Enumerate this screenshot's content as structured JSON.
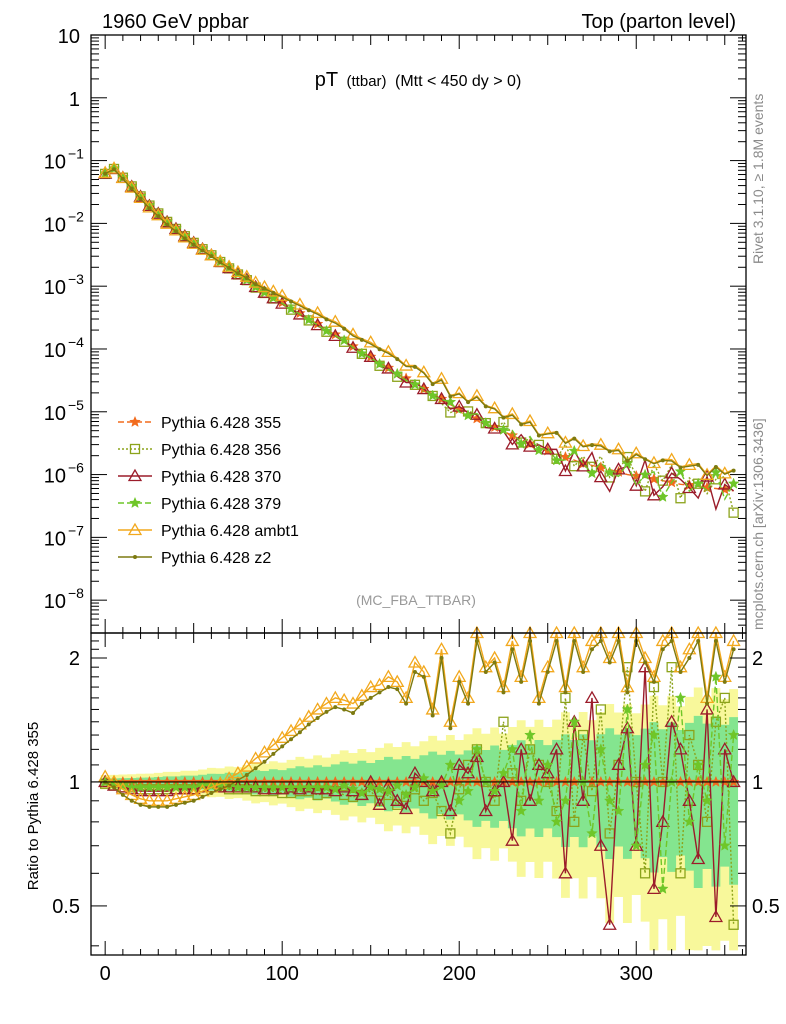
{
  "header": {
    "left": "1960 GeV ppbar",
    "right": "Top (parton level)"
  },
  "side_labels": {
    "rivet": "Rivet 3.1.10, ≥ 1.8M events",
    "mcplots": "mcplots.cern.ch [arXiv:1306.3436]"
  },
  "chart_data": {
    "type": "line",
    "title_main": "pT",
    "title_sub": "(ttbar)",
    "title_cond": "(Mtt < 450 dy > 0)",
    "analysis": "(MC_FBA_TTBAR)",
    "ratio_ylabel": "Ratio to Pythia 6.428 355",
    "xlim": [
      -8,
      362
    ],
    "ylim_main": [
      3e-09,
      10
    ],
    "ylim_ratio": [
      0.38,
      2.3
    ],
    "yscale_main": "log",
    "yscale_ratio": "log",
    "x_ticks": [
      "0",
      "100",
      "200",
      "300"
    ],
    "x_tick_values": [
      0,
      100,
      200,
      300
    ],
    "y_ticks_main": [
      {
        "base": "10",
        "exp": "",
        "value": 10
      },
      {
        "base": "1",
        "exp": "",
        "value": 1
      },
      {
        "base": "10",
        "exp": "−1",
        "value": 0.1
      },
      {
        "base": "10",
        "exp": "−2",
        "value": 0.01
      },
      {
        "base": "10",
        "exp": "−3",
        "value": 0.001
      },
      {
        "base": "10",
        "exp": "−4",
        "value": 0.0001
      },
      {
        "base": "10",
        "exp": "−5",
        "value": 1e-05
      },
      {
        "base": "10",
        "exp": "−6",
        "value": 1e-06
      },
      {
        "base": "10",
        "exp": "−7",
        "value": 1e-07
      },
      {
        "base": "10",
        "exp": "−8",
        "value": 1e-08
      }
    ],
    "y_ticks_ratio": [
      {
        "label": "2",
        "value": 2
      },
      {
        "label": "1",
        "value": 1
      },
      {
        "label": "0.5",
        "value": 0.5
      }
    ],
    "legend_position": "lower-left",
    "x": [
      0,
      5,
      10,
      15,
      20,
      25,
      30,
      35,
      40,
      45,
      50,
      55,
      60,
      65,
      70,
      75,
      80,
      85,
      90,
      95,
      100,
      105,
      110,
      115,
      120,
      125,
      130,
      135,
      140,
      145,
      150,
      155,
      160,
      165,
      170,
      175,
      180,
      185,
      190,
      195,
      200,
      205,
      210,
      215,
      220,
      225,
      230,
      235,
      240,
      245,
      250,
      255,
      260,
      265,
      270,
      275,
      280,
      285,
      290,
      295,
      300,
      305,
      310,
      315,
      320,
      325,
      330,
      335,
      340,
      345,
      350,
      355
    ],
    "reference": [
      0.062,
      0.075,
      0.055,
      0.04,
      0.028,
      0.02,
      0.015,
      0.011,
      0.0085,
      0.0065,
      0.0051,
      0.004,
      0.0032,
      0.0025,
      0.002,
      0.0016,
      0.0013,
      0.001,
      0.00082,
      0.00067,
      0.00055,
      0.00045,
      0.00037,
      0.0003,
      0.00025,
      0.0002,
      0.00017,
      0.00014,
      0.00011,
      9e-05,
      7.5e-05,
      6e-05,
      5e-05,
      4.1e-05,
      3.4e-05,
      2.8e-05,
      2.3e-05,
      1.9e-05,
      1.6e-05,
      1.3e-05,
      1.1e-05,
      9.2e-06,
      7.8e-06,
      6.6e-06,
      5.7e-06,
      4.9e-06,
      4.2e-06,
      3.6e-06,
      3.1e-06,
      2.7e-06,
      2.4e-06,
      2.1e-06,
      1.9e-06,
      1.7e-06,
      1.5e-06,
      1.4e-06,
      1.3e-06,
      1.2e-06,
      1.1e-06,
      1e-06,
      9.5e-07,
      9e-07,
      8.5e-07,
      8e-07,
      7.5e-07,
      7e-07,
      6.8e-07,
      6.5e-07,
      6.2e-07,
      6e-07,
      5.8e-07,
      5.5e-07
    ],
    "ratio_reference": 1.0,
    "ratio_band": {
      "green_halfwidth_start": 0.02,
      "green_halfwidth_end": 0.45,
      "yellow_halfwidth_start": 0.04,
      "yellow_halfwidth_end": 0.7
    },
    "series": [
      {
        "name": "Pythia 6.428 355",
        "color": "#f26b1d",
        "marker": "star",
        "style": "dashed",
        "ratio": [
          1.0,
          1.0,
          1.0,
          1.0,
          1.0,
          1.0,
          1.0,
          1.0,
          1.0,
          1.0,
          1.0,
          1.0,
          1.0,
          1.0,
          1.0,
          1.0,
          1.0,
          1.0,
          1.0,
          1.0,
          1.0,
          1.0,
          1.0,
          1.0,
          1.0,
          1.0,
          1.0,
          1.0,
          1.0,
          1.0,
          1.0,
          1.0,
          1.0,
          1.0,
          1.0,
          1.0,
          1.0,
          1.0,
          1.0,
          1.0,
          1.0,
          1.0,
          1.0,
          1.0,
          1.0,
          1.0,
          1.0,
          1.0,
          1.0,
          1.0,
          1.0,
          1.0,
          1.0,
          1.0,
          1.0,
          1.0,
          1.0,
          1.0,
          1.0,
          1.0,
          1.0,
          1.0,
          1.0,
          1.0,
          1.0,
          1.0,
          1.0,
          1.0,
          1.0,
          1.0,
          1.0,
          1.0
        ]
      },
      {
        "name": "Pythia 6.428 356",
        "color": "#8ca31b",
        "marker": "open-square",
        "style": "dotted",
        "ratio": [
          0.99,
          0.98,
          0.97,
          0.97,
          0.96,
          0.96,
          0.96,
          0.96,
          0.96,
          0.96,
          0.96,
          0.97,
          0.97,
          0.97,
          0.96,
          0.96,
          0.96,
          0.95,
          0.95,
          0.95,
          0.94,
          0.94,
          0.95,
          0.95,
          0.93,
          0.94,
          0.95,
          0.93,
          0.92,
          0.93,
          0.95,
          0.9,
          0.93,
          0.88,
          0.92,
          0.96,
          0.9,
          0.94,
          0.85,
          0.75,
          0.96,
          1.1,
          1.2,
          1.0,
          0.9,
          1.4,
          1.05,
          0.9,
          1.2,
          1.1,
          1.0,
          0.85,
          1.6,
          0.8,
          1.3,
          0.95,
          1.5,
          0.75,
          1.1,
          1.9,
          1.0,
          0.6,
          1.7,
          1.0,
          1.9,
          0.6,
          1.3,
          1.1,
          0.8,
          1.4,
          1.6,
          0.45
        ]
      },
      {
        "name": "Pythia 6.428 370",
        "color": "#9b1c2a",
        "marker": "open-triangle",
        "style": "solid",
        "ratio": [
          1.0,
          0.98,
          0.97,
          0.96,
          0.95,
          0.95,
          0.95,
          0.95,
          0.96,
          0.96,
          0.96,
          0.97,
          0.97,
          0.97,
          0.97,
          0.97,
          0.97,
          0.97,
          0.96,
          0.96,
          0.96,
          0.97,
          0.96,
          0.97,
          0.96,
          0.96,
          0.95,
          0.97,
          0.95,
          0.93,
          1.0,
          0.88,
          0.98,
          0.9,
          0.86,
          1.05,
          1.0,
          0.95,
          1.0,
          0.85,
          1.1,
          1.05,
          1.15,
          0.85,
          0.95,
          1.0,
          0.72,
          1.2,
          0.9,
          1.1,
          1.05,
          1.2,
          0.6,
          1.4,
          0.9,
          1.6,
          0.7,
          0.45,
          1.1,
          1.35,
          0.7,
          1.9,
          0.55,
          0.8,
          1.4,
          1.2,
          0.9,
          0.65,
          1.5,
          0.47,
          1.2,
          1.0
        ]
      },
      {
        "name": "Pythia 6.428 379",
        "color": "#6fc628",
        "marker": "star",
        "style": "dashed",
        "ratio": [
          1.0,
          0.99,
          0.98,
          0.97,
          0.97,
          0.97,
          0.97,
          0.97,
          0.97,
          0.97,
          0.97,
          0.98,
          0.98,
          0.98,
          0.98,
          0.97,
          0.97,
          0.97,
          0.97,
          0.97,
          0.97,
          0.97,
          0.97,
          0.97,
          0.97,
          0.97,
          0.96,
          0.98,
          0.96,
          0.94,
          0.97,
          0.96,
          0.95,
          0.98,
          0.93,
          0.97,
          1.02,
          0.95,
          0.98,
          1.1,
          0.9,
          0.95,
          1.2,
          1.0,
          0.95,
          1.05,
          1.2,
          0.85,
          1.3,
          0.9,
          1.1,
          0.8,
          0.9,
          1.4,
          1.0,
          0.75,
          1.2,
          0.9,
          0.85,
          1.5,
          0.7,
          1.1,
          1.3,
          0.55,
          1.0,
          1.6,
          0.8,
          1.1,
          0.9,
          1.8,
          0.7,
          1.3
        ]
      },
      {
        "name": "Pythia 6.428 ambt1",
        "color": "#f2a81d",
        "marker": "open-triangle",
        "style": "solid",
        "ratio": [
          1.03,
          1.0,
          0.96,
          0.93,
          0.91,
          0.9,
          0.9,
          0.9,
          0.91,
          0.92,
          0.93,
          0.95,
          0.97,
          0.99,
          1.02,
          1.05,
          1.09,
          1.14,
          1.18,
          1.23,
          1.28,
          1.33,
          1.38,
          1.44,
          1.5,
          1.55,
          1.6,
          1.58,
          1.55,
          1.62,
          1.7,
          1.72,
          1.8,
          1.75,
          1.6,
          1.95,
          1.85,
          1.5,
          2.1,
          1.4,
          1.8,
          1.6,
          2.3,
          1.9,
          2.0,
          1.7,
          2.2,
          1.8,
          2.3,
          1.6,
          1.9,
          2.3,
          1.7,
          2.3,
          1.9,
          2.2,
          2.3,
          2.0,
          2.3,
          1.7,
          2.3,
          2.0,
          1.8,
          2.2,
          2.3,
          1.9,
          2.1,
          2.3,
          1.6,
          2.3,
          1.8,
          2.2
        ]
      },
      {
        "name": "Pythia 6.428 z2",
        "color": "#7d7a10",
        "marker": "dot",
        "style": "solid",
        "ratio": [
          1.0,
          0.97,
          0.93,
          0.9,
          0.88,
          0.87,
          0.87,
          0.87,
          0.88,
          0.89,
          0.9,
          0.92,
          0.94,
          0.96,
          0.98,
          1.01,
          1.04,
          1.08,
          1.12,
          1.17,
          1.22,
          1.27,
          1.32,
          1.38,
          1.43,
          1.48,
          1.52,
          1.5,
          1.47,
          1.55,
          1.6,
          1.65,
          1.7,
          1.68,
          1.55,
          1.85,
          1.8,
          1.45,
          2.0,
          1.35,
          1.75,
          1.55,
          2.2,
          1.85,
          1.95,
          1.65,
          2.1,
          1.75,
          2.2,
          1.55,
          1.85,
          2.2,
          1.65,
          2.2,
          1.85,
          2.1,
          2.2,
          1.95,
          2.2,
          1.65,
          2.2,
          1.95,
          1.75,
          2.1,
          2.2,
          1.85,
          2.0,
          2.2,
          1.55,
          2.2,
          1.75,
          2.1
        ]
      }
    ]
  }
}
